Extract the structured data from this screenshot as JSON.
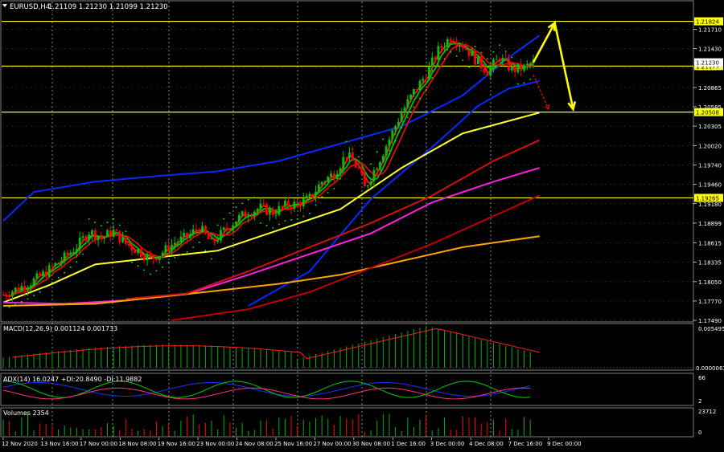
{
  "colors": {
    "background": "#000000",
    "grid": "#c8c8c8",
    "bull": "#00c000",
    "bear": "#ff0000",
    "text": "#ffffff",
    "hline": "#ffff00",
    "ma_blue": "#0a28ff",
    "ma_red": "#d41010",
    "ma_lightred": "#ff1a1a",
    "ma_yellow": "#ffff33",
    "ma_magenta": "#ff22dd",
    "ma_orange": "#ffa500",
    "ma_darkred": "#c00000",
    "psar": "#00ff00",
    "arrow_main": "#ffff00",
    "arrow_alt": "#ff0000",
    "macd_hist": "#00b000",
    "macd_signal": "#ff2020",
    "adx": "#2030ff",
    "plus_di": "#00d000",
    "minus_di": "#ff3080",
    "volume_up": "#00b000",
    "volume_down": "#ff0000",
    "price_box_bg": "#ffff00",
    "price_box_text": "#000000"
  },
  "icons": {
    "collapse_triangle": "triangle-down-icon"
  },
  "header": {
    "symbol": "EURUSD,H4",
    "ohlc": "1.21109 1.21230 1.21099 1.21230"
  },
  "price_axis": {
    "labels": [
      "1.21710",
      "1.21430",
      "1.21150",
      "1.20865",
      "1.20585",
      "1.20305",
      "1.20020",
      "1.19740",
      "1.19460",
      "1.19180",
      "1.18899",
      "1.18615",
      "1.18335",
      "1.18050",
      "1.17770",
      "1.17490"
    ],
    "hlines": [
      {
        "price": 1.21824,
        "label": "1.21824"
      },
      {
        "price": 1.21175,
        "label": "1.21175"
      },
      {
        "price": 1.20508,
        "label": "1.20508"
      },
      {
        "price": 1.19265,
        "label": "1.19265"
      }
    ],
    "current_price_label": "1.21230"
  },
  "time_axis": {
    "labels": [
      "12 Nov 2020",
      "13 Nov 16:00",
      "17 Nov 00:00",
      "18 Nov 08:00",
      "19 Nov 16:00",
      "23 Nov 00:00",
      "24 Nov 08:00",
      "25 Nov 16:00",
      "27 Nov 00:00",
      "30 Nov 08:00",
      "1 Dec 16:00",
      "3 Dec 00:00",
      "4 Dec 08:00",
      "7 Dec 16:00",
      "9 Dec 00:00"
    ]
  },
  "macd": {
    "label": "MACD(12,26,9) 0.001124 0.001733",
    "axis_top": "0.005495",
    "axis_bottom": "0.00000616"
  },
  "adx": {
    "label": "ADX(14) 16.0247 +DI:20.8490 -DI:11.9882",
    "axis_top": "66",
    "axis_bottom": "2"
  },
  "volumes": {
    "label": "Volumes 2354",
    "axis_top": "23712",
    "axis_bottom": "0"
  },
  "chart_data": {
    "type": "candlestick",
    "symbol": "EURUSD",
    "timeframe": "H4",
    "ylim": [
      1.1749,
      1.2197
    ],
    "ohlc_points": [
      [
        0,
        1.1786
      ],
      [
        4,
        1.1794
      ],
      [
        8,
        1.1802
      ],
      [
        12,
        1.1812
      ],
      [
        16,
        1.1826
      ],
      [
        20,
        1.184
      ],
      [
        24,
        1.1856
      ],
      [
        28,
        1.1878
      ],
      [
        32,
        1.1868
      ],
      [
        36,
        1.1878
      ],
      [
        40,
        1.186
      ],
      [
        44,
        1.185
      ],
      [
        48,
        1.1838
      ],
      [
        52,
        1.1848
      ],
      [
        56,
        1.1862
      ],
      [
        60,
        1.187
      ],
      [
        64,
        1.1884
      ],
      [
        68,
        1.186
      ],
      [
        72,
        1.1878
      ],
      [
        76,
        1.1895
      ],
      [
        80,
        1.1906
      ],
      [
        84,
        1.1912
      ],
      [
        88,
        1.1905
      ],
      [
        92,
        1.1915
      ],
      [
        96,
        1.1918
      ],
      [
        100,
        1.1926
      ],
      [
        104,
        1.195
      ],
      [
        108,
        1.1962
      ],
      [
        112,
        1.199
      ],
      [
        116,
        1.1968
      ],
      [
        118,
        1.194
      ],
      [
        122,
        1.1975
      ],
      [
        126,
        1.2012
      ],
      [
        130,
        1.205
      ],
      [
        134,
        1.208
      ],
      [
        138,
        1.2105
      ],
      [
        142,
        1.214
      ],
      [
        146,
        1.216
      ],
      [
        150,
        1.2148
      ],
      [
        154,
        1.2128
      ],
      [
        158,
        1.211
      ],
      [
        162,
        1.213
      ],
      [
        166,
        1.2112
      ],
      [
        170,
        1.2115
      ],
      [
        173,
        1.2123
      ]
    ],
    "last": {
      "open": 1.21109,
      "high": 1.2123,
      "low": 1.21099,
      "close": 1.2123
    },
    "moving_averages": [
      {
        "color_key": "ma_blue",
        "points": [
          [
            0,
            1.1893
          ],
          [
            10,
            1.1935
          ],
          [
            30,
            1.195
          ],
          [
            50,
            1.1958
          ],
          [
            70,
            1.1965
          ],
          [
            90,
            1.198
          ],
          [
            110,
            1.2005
          ],
          [
            130,
            1.203
          ],
          [
            150,
            1.2075
          ],
          [
            165,
            1.213
          ],
          [
            175,
            1.2162
          ]
        ]
      },
      {
        "color_key": "ma_blue",
        "points": [
          [
            80,
            1.177
          ],
          [
            100,
            1.182
          ],
          [
            120,
            1.1925
          ],
          [
            140,
            1.2
          ],
          [
            155,
            1.206
          ],
          [
            165,
            1.2085
          ],
          [
            175,
            1.2096
          ]
        ]
      },
      {
        "color_key": "ma_yellow",
        "points": [
          [
            0,
            1.1775
          ],
          [
            15,
            1.18
          ],
          [
            30,
            1.183
          ],
          [
            50,
            1.184
          ],
          [
            70,
            1.185
          ],
          [
            90,
            1.188
          ],
          [
            110,
            1.191
          ],
          [
            130,
            1.197
          ],
          [
            150,
            1.202
          ],
          [
            175,
            1.205
          ]
        ]
      },
      {
        "color_key": "ma_magenta",
        "points": [
          [
            0,
            1.1775
          ],
          [
            20,
            1.1773
          ],
          [
            40,
            1.1778
          ],
          [
            60,
            1.1787
          ],
          [
            80,
            1.1815
          ],
          [
            100,
            1.1845
          ],
          [
            120,
            1.1875
          ],
          [
            140,
            1.192
          ],
          [
            160,
            1.195
          ],
          [
            175,
            1.197
          ]
        ]
      },
      {
        "color_key": "ma_orange",
        "points": [
          [
            0,
            1.177
          ],
          [
            30,
            1.1773
          ],
          [
            60,
            1.1787
          ],
          [
            90,
            1.1802
          ],
          [
            110,
            1.1815
          ],
          [
            130,
            1.1835
          ],
          [
            150,
            1.1855
          ],
          [
            175,
            1.1871
          ]
        ]
      },
      {
        "color_key": "ma_red",
        "points": [
          [
            40,
            1.178
          ],
          [
            60,
            1.1788
          ],
          [
            80,
            1.182
          ],
          [
            100,
            1.1855
          ],
          [
            120,
            1.189
          ],
          [
            140,
            1.193
          ],
          [
            160,
            1.198
          ],
          [
            175,
            1.201
          ]
        ]
      },
      {
        "color_key": "ma_darkred",
        "points": [
          [
            55,
            1.1749
          ],
          [
            80,
            1.1765
          ],
          [
            100,
            1.179
          ],
          [
            120,
            1.1825
          ],
          [
            140,
            1.186
          ],
          [
            160,
            1.19
          ],
          [
            175,
            1.193
          ]
        ]
      }
    ],
    "arrows": [
      {
        "color_key": "arrow_main",
        "points": [
          [
            173,
            1.2123
          ],
          [
            180,
            1.218
          ],
          [
            186,
            1.2055
          ]
        ]
      },
      {
        "color_key": "arrow_alt",
        "points": [
          [
            173,
            1.2105
          ],
          [
            178,
            1.2055
          ]
        ]
      }
    ]
  }
}
